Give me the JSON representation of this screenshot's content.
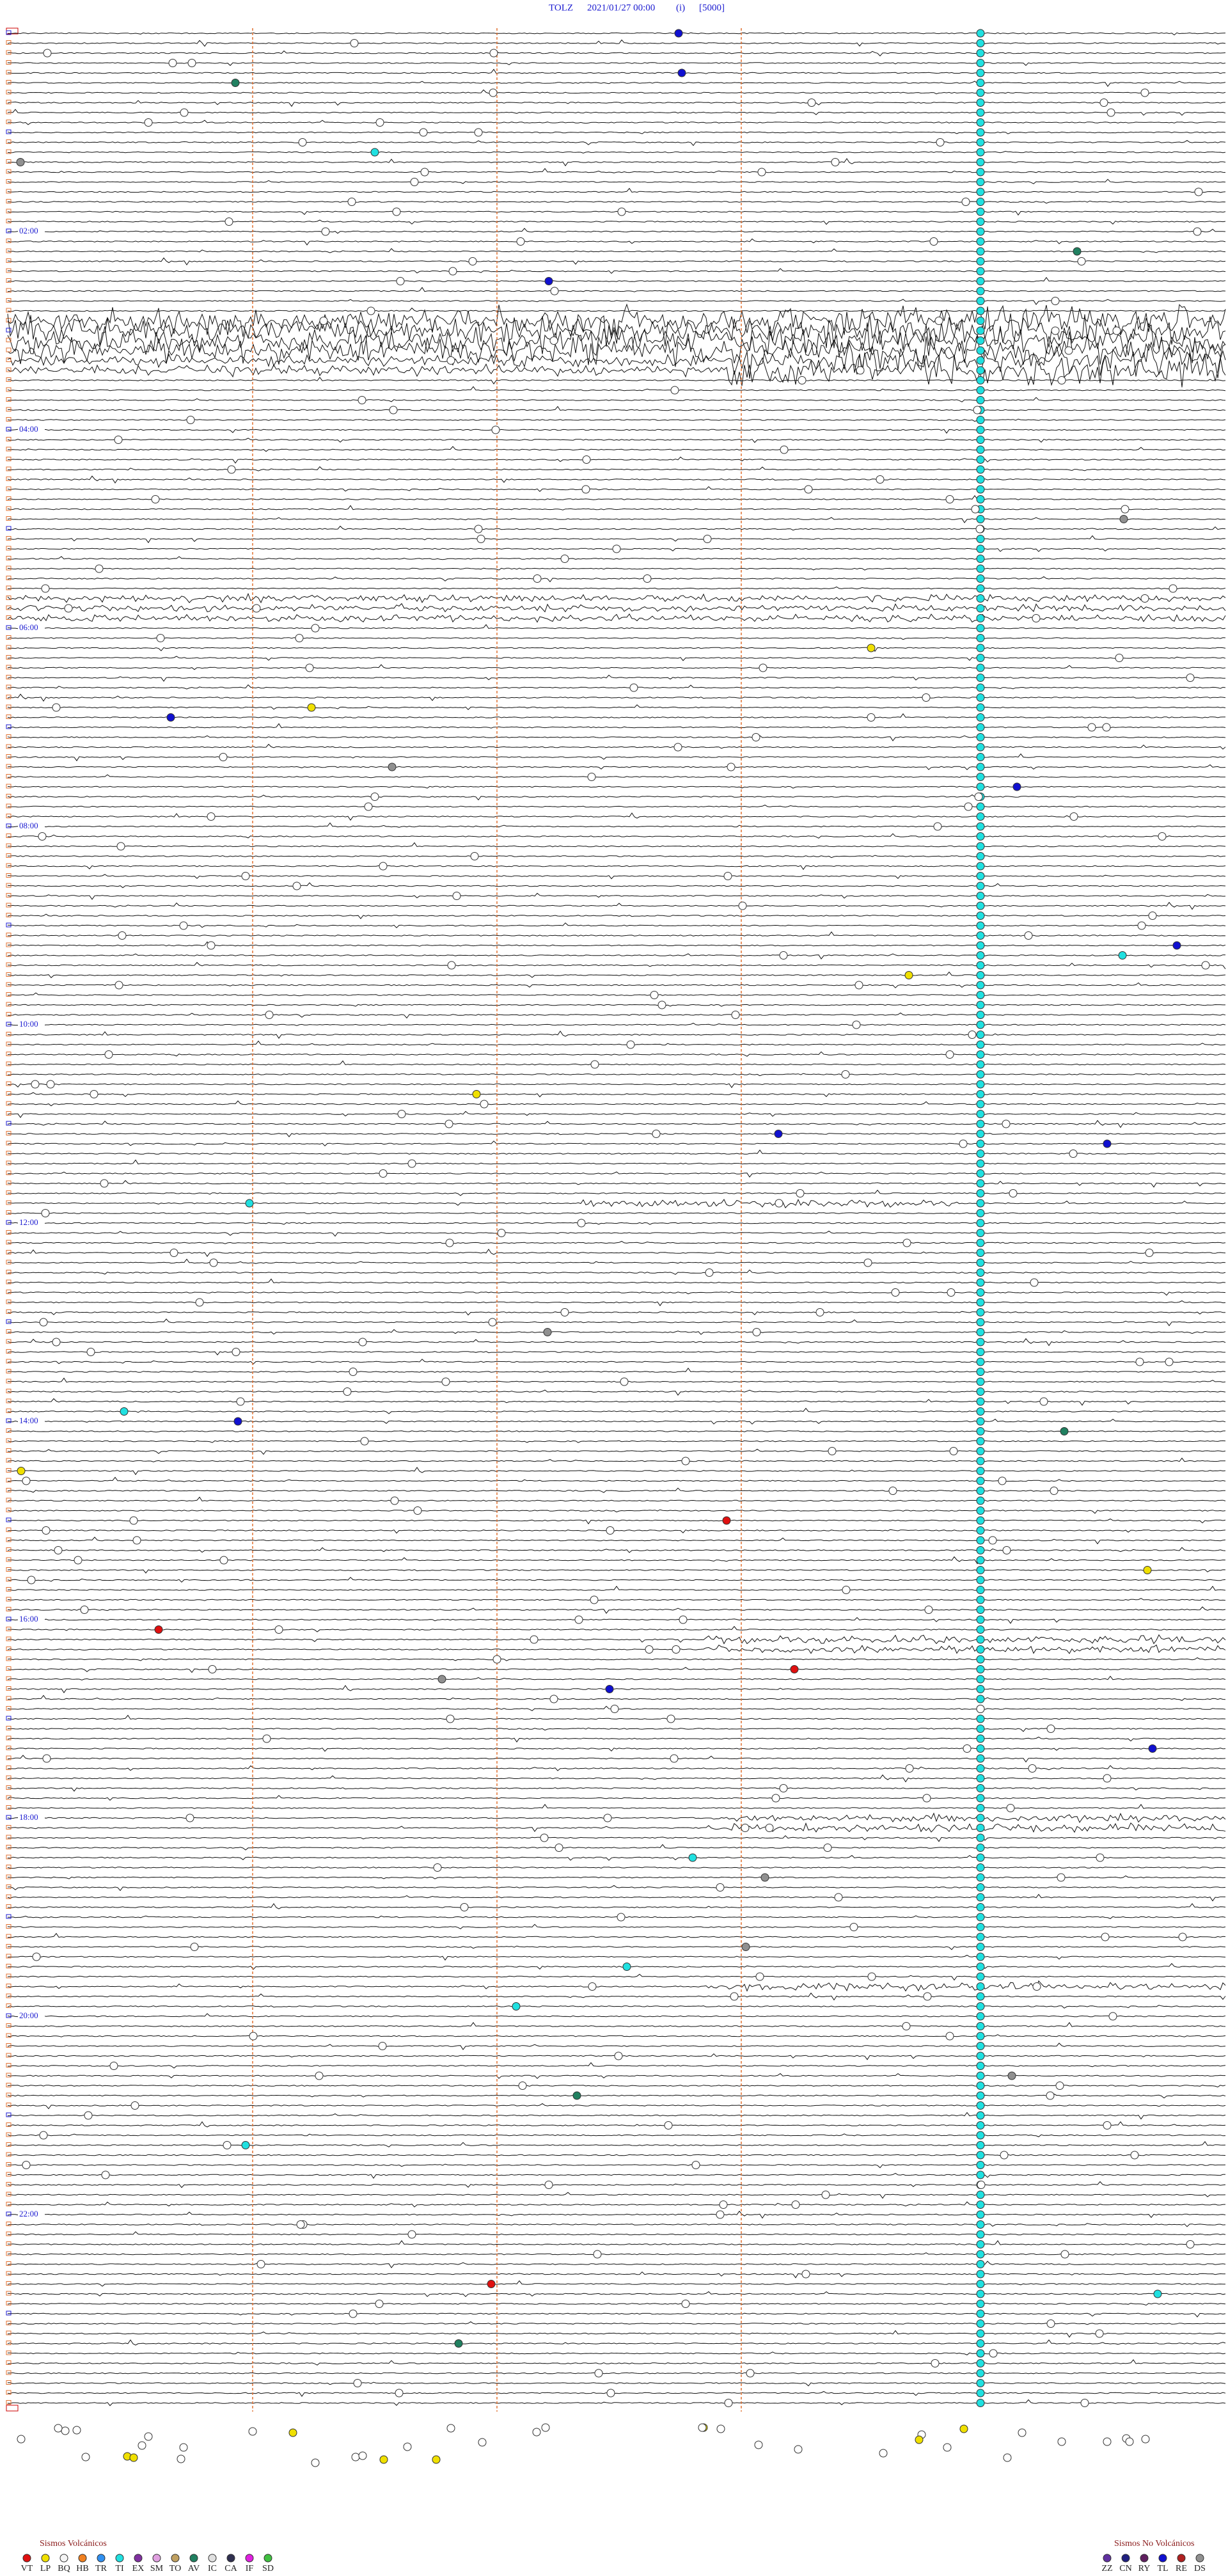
{
  "header": {
    "station": "TOLZ",
    "datetime": "2021/01/27 00:00",
    "mode": "(i)",
    "scale": "[5000]"
  },
  "hour_labels": [
    "02:00",
    "04:00",
    "06:00",
    "08:00",
    "10:00",
    "12:00",
    "14:00",
    "16:00",
    "18:00",
    "20:00",
    "22:00"
  ],
  "legend_volcanic": {
    "title": "Sismos Volcánicos",
    "items": [
      {
        "code": "VT",
        "color": "#e01010"
      },
      {
        "code": "LP",
        "color": "#f0e000"
      },
      {
        "code": "BQ",
        "color": "#f5f5f5"
      },
      {
        "code": "HB",
        "color": "#f08020"
      },
      {
        "code": "TR",
        "color": "#3090f0"
      },
      {
        "code": "TI",
        "color": "#20e0e0"
      },
      {
        "code": "EX",
        "color": "#8030a0"
      },
      {
        "code": "SM",
        "color": "#e0a0e0"
      },
      {
        "code": "TO",
        "color": "#c0a060"
      },
      {
        "code": "AV",
        "color": "#208060"
      },
      {
        "code": "IC",
        "color": "#e0e0e0"
      },
      {
        "code": "CA",
        "color": "#303050"
      },
      {
        "code": "IF",
        "color": "#e020e0"
      },
      {
        "code": "SD",
        "color": "#40c040"
      }
    ]
  },
  "legend_nonvolcanic": {
    "title": "Sismos No Volcánicos",
    "items": [
      {
        "code": "ZZ",
        "color": "#6030a0"
      },
      {
        "code": "CN",
        "color": "#202080"
      },
      {
        "code": "RY",
        "color": "#602060"
      },
      {
        "code": "TL",
        "color": "#1010d0"
      },
      {
        "code": "RE",
        "color": "#b02020"
      },
      {
        "code": "DS",
        "color": "#909090"
      }
    ]
  }
}
